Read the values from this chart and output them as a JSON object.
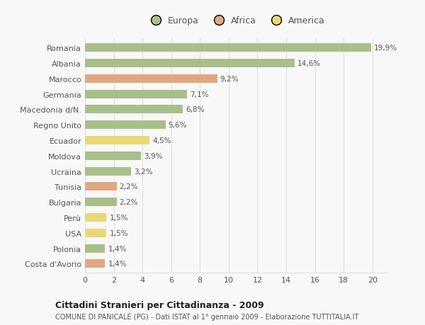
{
  "categories": [
    "Costa d'Avorio",
    "Polonia",
    "USA",
    "Perù",
    "Bulgaria",
    "Tunisia",
    "Ucraina",
    "Moldova",
    "Ecuador",
    "Regno Unito",
    "Macedonia d/N.",
    "Germania",
    "Marocco",
    "Albania",
    "Romania"
  ],
  "values": [
    1.4,
    1.4,
    1.5,
    1.5,
    2.2,
    2.2,
    3.2,
    3.9,
    4.5,
    5.6,
    6.8,
    7.1,
    9.2,
    14.6,
    19.9
  ],
  "labels": [
    "1,4%",
    "1,4%",
    "1,5%",
    "1,5%",
    "2,2%",
    "2,2%",
    "3,2%",
    "3,9%",
    "4,5%",
    "5,6%",
    "6,8%",
    "7,1%",
    "9,2%",
    "14,6%",
    "19,9%"
  ],
  "colors": [
    "#e0a882",
    "#a8bf8a",
    "#e8d878",
    "#e8d878",
    "#a8bf8a",
    "#e0a882",
    "#a8bf8a",
    "#a8bf8a",
    "#e8d878",
    "#a8bf8a",
    "#a8bf8a",
    "#a8bf8a",
    "#e0a882",
    "#a8bf8a",
    "#a8bf8a"
  ],
  "continent_colors": {
    "Europa": "#a8bf8a",
    "Africa": "#e0a882",
    "America": "#e8d878"
  },
  "xlim": [
    0,
    21
  ],
  "xticks": [
    0,
    2,
    4,
    6,
    8,
    10,
    12,
    14,
    16,
    18,
    20
  ],
  "title": "Cittadini Stranieri per Cittadinanza - 2009",
  "subtitle": "COMUNE DI PANICALE (PG) - Dati ISTAT al 1° gennaio 2009 - Elaborazione TUTTITALIA.IT",
  "bg_color": "#f8f8f8",
  "grid_color": "#e0e0e0",
  "bar_height": 0.55
}
